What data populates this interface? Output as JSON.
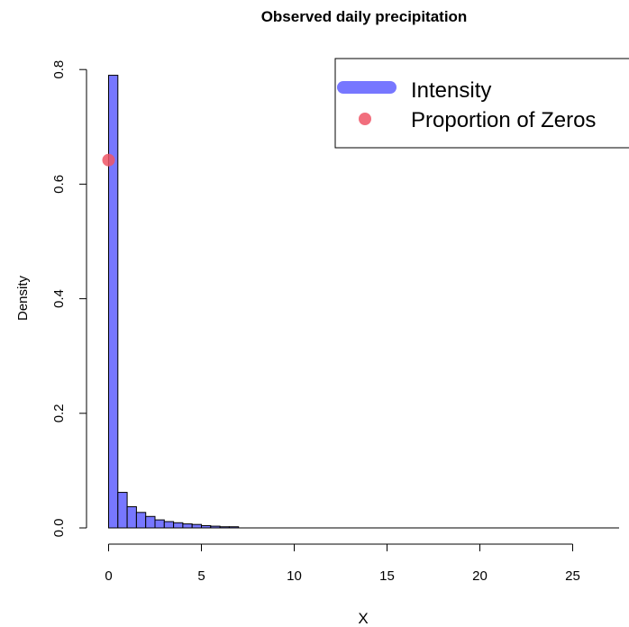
{
  "chart_data": {
    "type": "bar",
    "title": "Observed daily precipitation",
    "xlabel": "X",
    "ylabel": "Density",
    "xlim": [
      0,
      27.5
    ],
    "ylim": [
      0,
      0.8
    ],
    "x_ticks": [
      0,
      5,
      10,
      15,
      20,
      25
    ],
    "x_tick_labels": [
      "0",
      "5",
      "10",
      "15",
      "20",
      "25"
    ],
    "y_ticks": [
      0.0,
      0.2,
      0.4,
      0.6,
      0.8
    ],
    "y_tick_labels": [
      "0.0",
      "0.2",
      "0.4",
      "0.6",
      "0.8"
    ],
    "grid": false,
    "legend_position": "top-right",
    "series": [
      {
        "name": "Intensity",
        "kind": "histogram",
        "color": "#7777ff",
        "bin_width": 0.5,
        "bin_starts": [
          0,
          0.5,
          1.0,
          1.5,
          2.0,
          2.5,
          3.0,
          3.5,
          4.0,
          4.5,
          5.0,
          5.5,
          6.0,
          6.5
        ],
        "values": [
          0.79,
          0.062,
          0.037,
          0.027,
          0.02,
          0.014,
          0.011,
          0.009,
          0.007,
          0.006,
          0.004,
          0.003,
          0.002,
          0.002
        ]
      },
      {
        "name": "Proportion of Zeros",
        "kind": "point",
        "color": "#ee5566",
        "x": 0,
        "y": 0.642
      }
    ],
    "legend": {
      "items": [
        {
          "label": "Intensity",
          "swatch": "thick-line",
          "color": "#7777ff"
        },
        {
          "label": "Proportion of Zeros",
          "swatch": "dot",
          "color": "#ee5566"
        }
      ]
    }
  }
}
